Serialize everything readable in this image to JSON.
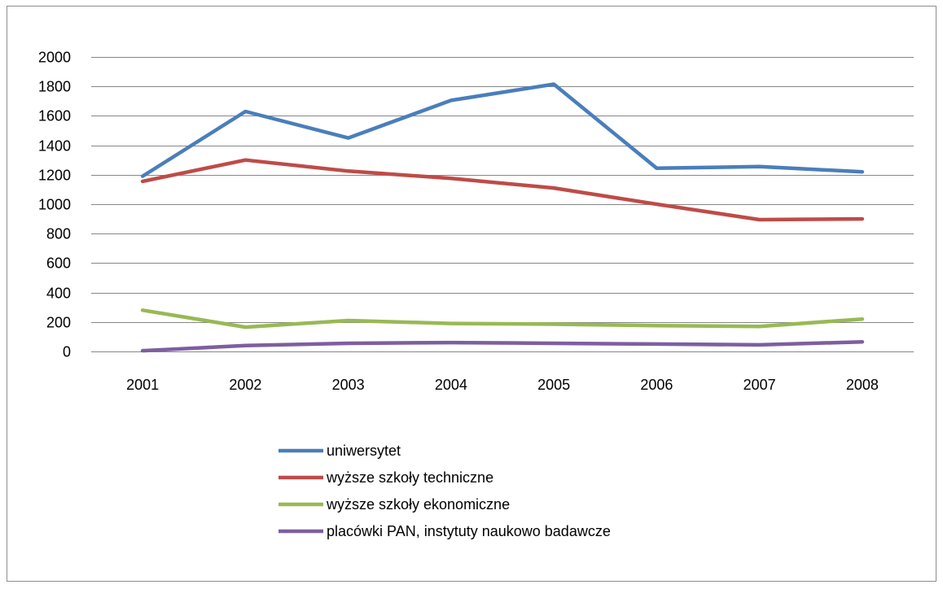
{
  "chart_data": {
    "type": "line",
    "title": "",
    "xlabel": "",
    "ylabel": "",
    "categories": [
      "2001",
      "2002",
      "2003",
      "2004",
      "2005",
      "2006",
      "2007",
      "2008"
    ],
    "ylim": [
      0,
      2000
    ],
    "yticks": [
      0,
      200,
      400,
      600,
      800,
      1000,
      1200,
      1400,
      1600,
      1800,
      2000
    ],
    "grid": true,
    "legend_position": "bottom",
    "series": [
      {
        "name": "uniwersytet",
        "color": "#4a7ebb",
        "values": [
          1190,
          1630,
          1450,
          1705,
          1815,
          1245,
          1255,
          1220
        ]
      },
      {
        "name": "wyższe szkoły techniczne",
        "color": "#be4b48",
        "values": [
          1155,
          1300,
          1225,
          1175,
          1110,
          1000,
          895,
          900
        ]
      },
      {
        "name": "wyższe szkoły ekonomiczne",
        "color": "#98b954",
        "values": [
          280,
          165,
          210,
          190,
          185,
          175,
          170,
          220
        ]
      },
      {
        "name": "placówki PAN, instytuty naukowo badawcze",
        "color": "#7d5fa0",
        "values": [
          5,
          40,
          55,
          60,
          55,
          50,
          45,
          65
        ]
      }
    ]
  }
}
